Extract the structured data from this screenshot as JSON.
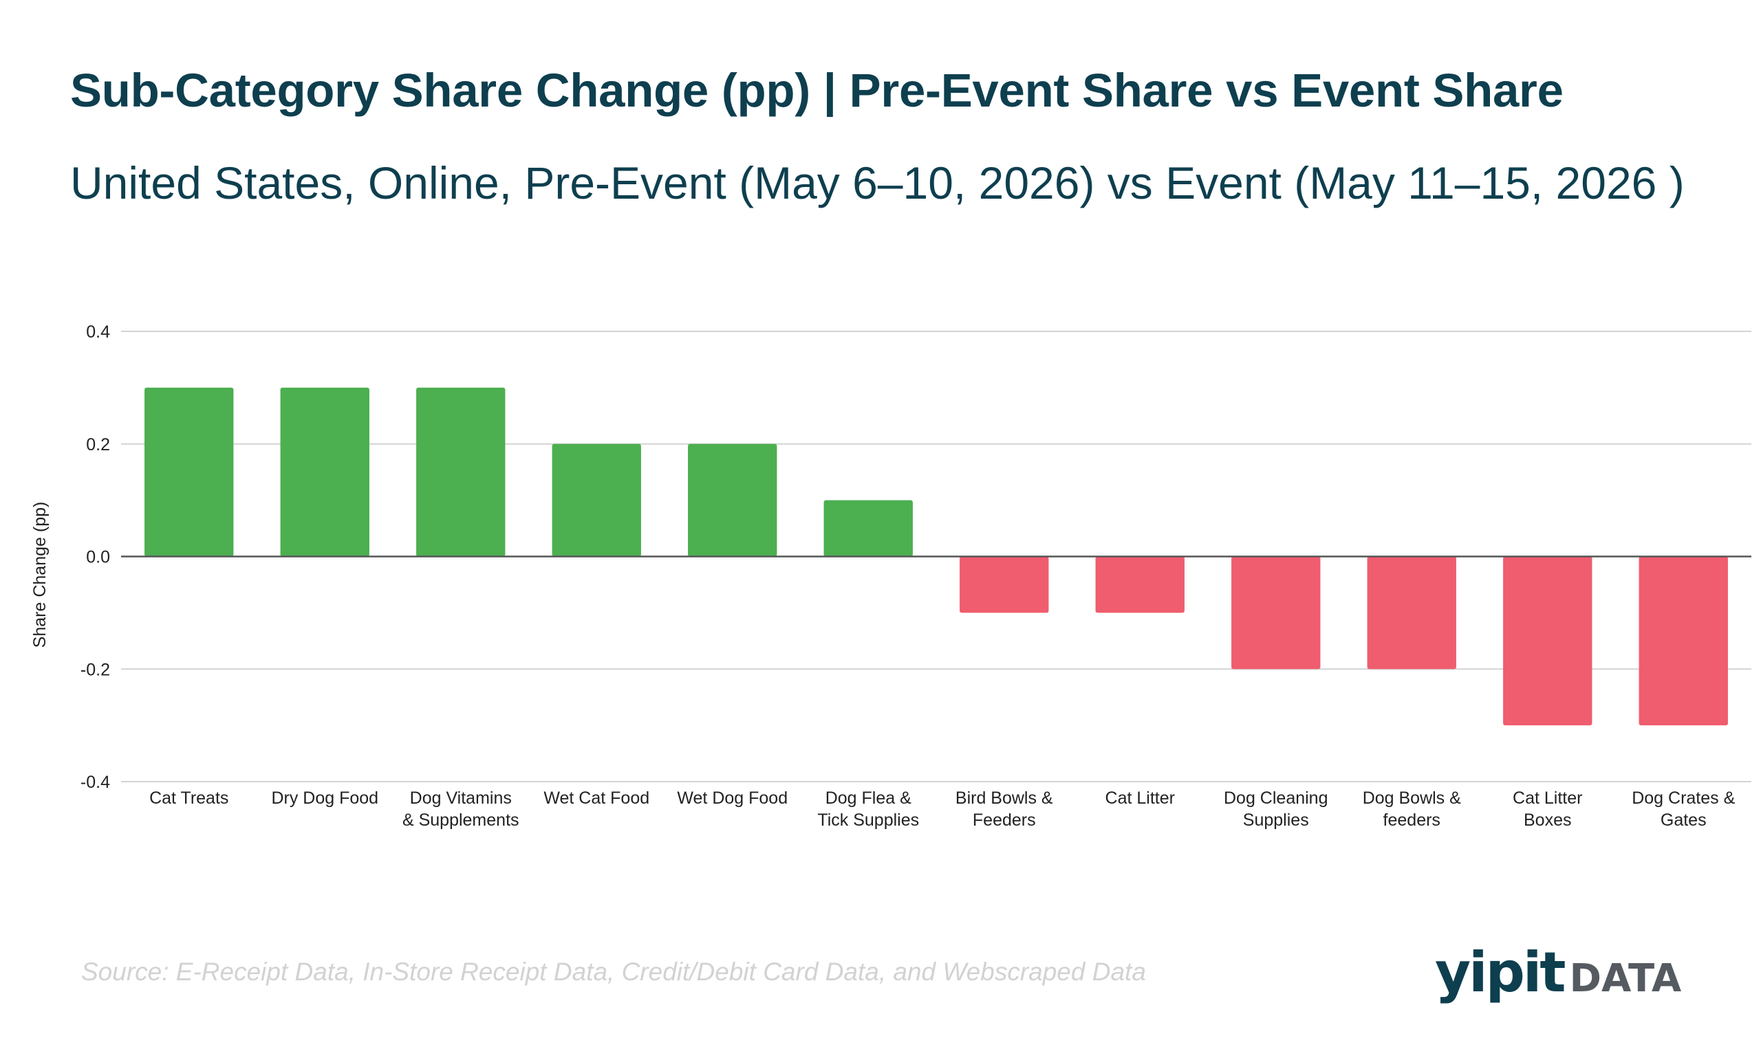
{
  "header": {
    "title": "Sub-Category Share Change (pp) | Pre-Event Share vs Event Share",
    "subtitle": "United States, Online, Pre-Event (May 6–10, 2026) vs Event (May 11–15, 2026 )"
  },
  "footer": {
    "source": "Source: E-Receipt Data, In-Store Receipt Data, Credit/Debit Card Data, and Webscraped Data",
    "logo_main": "yipit",
    "logo_sub": "DATA"
  },
  "colors": {
    "positive": "#4caf50",
    "negative": "#ef5d6e",
    "title": "#0e3f4f",
    "grid": "#d3d3d3",
    "baseline": "#555555"
  },
  "chart_data": {
    "type": "bar",
    "title": "Sub-Category Share Change (pp) | Pre-Event Share vs Event Share",
    "xlabel": "",
    "ylabel": "Share Change (pp)",
    "ylim": [
      -0.4,
      0.4
    ],
    "yticks": [
      0.4,
      0.2,
      0.0,
      -0.2,
      -0.4
    ],
    "ytick_labels": [
      "0.4",
      "0.2",
      "0.0",
      "-0.2",
      "-0.4"
    ],
    "grid": true,
    "categories": [
      "Cat Treats",
      "Dry Dog Food",
      "Dog Vitamins & Supplements",
      "Wet Cat Food",
      "Wet Dog Food",
      "Dog Flea & Tick Supplies",
      "Bird Bowls & Feeders",
      "Cat Litter",
      "Dog Cleaning Supplies",
      "Dog Bowls & feeders",
      "Cat Litter Boxes",
      "Dog Crates & Gates"
    ],
    "category_lines": [
      [
        "Cat Treats"
      ],
      [
        "Dry Dog Food"
      ],
      [
        "Dog Vitamins",
        "& Supplements"
      ],
      [
        "Wet Cat Food"
      ],
      [
        "Wet Dog Food"
      ],
      [
        "Dog Flea &",
        "Tick Supplies"
      ],
      [
        "Bird Bowls &",
        "Feeders"
      ],
      [
        "Cat Litter"
      ],
      [
        "Dog Cleaning",
        "Supplies"
      ],
      [
        "Dog Bowls &",
        "feeders"
      ],
      [
        "Cat Litter",
        "Boxes"
      ],
      [
        "Dog Crates &",
        "Gates"
      ]
    ],
    "values": [
      0.3,
      0.3,
      0.3,
      0.2,
      0.2,
      0.1,
      -0.1,
      -0.1,
      -0.2,
      -0.2,
      -0.3,
      -0.3
    ]
  }
}
